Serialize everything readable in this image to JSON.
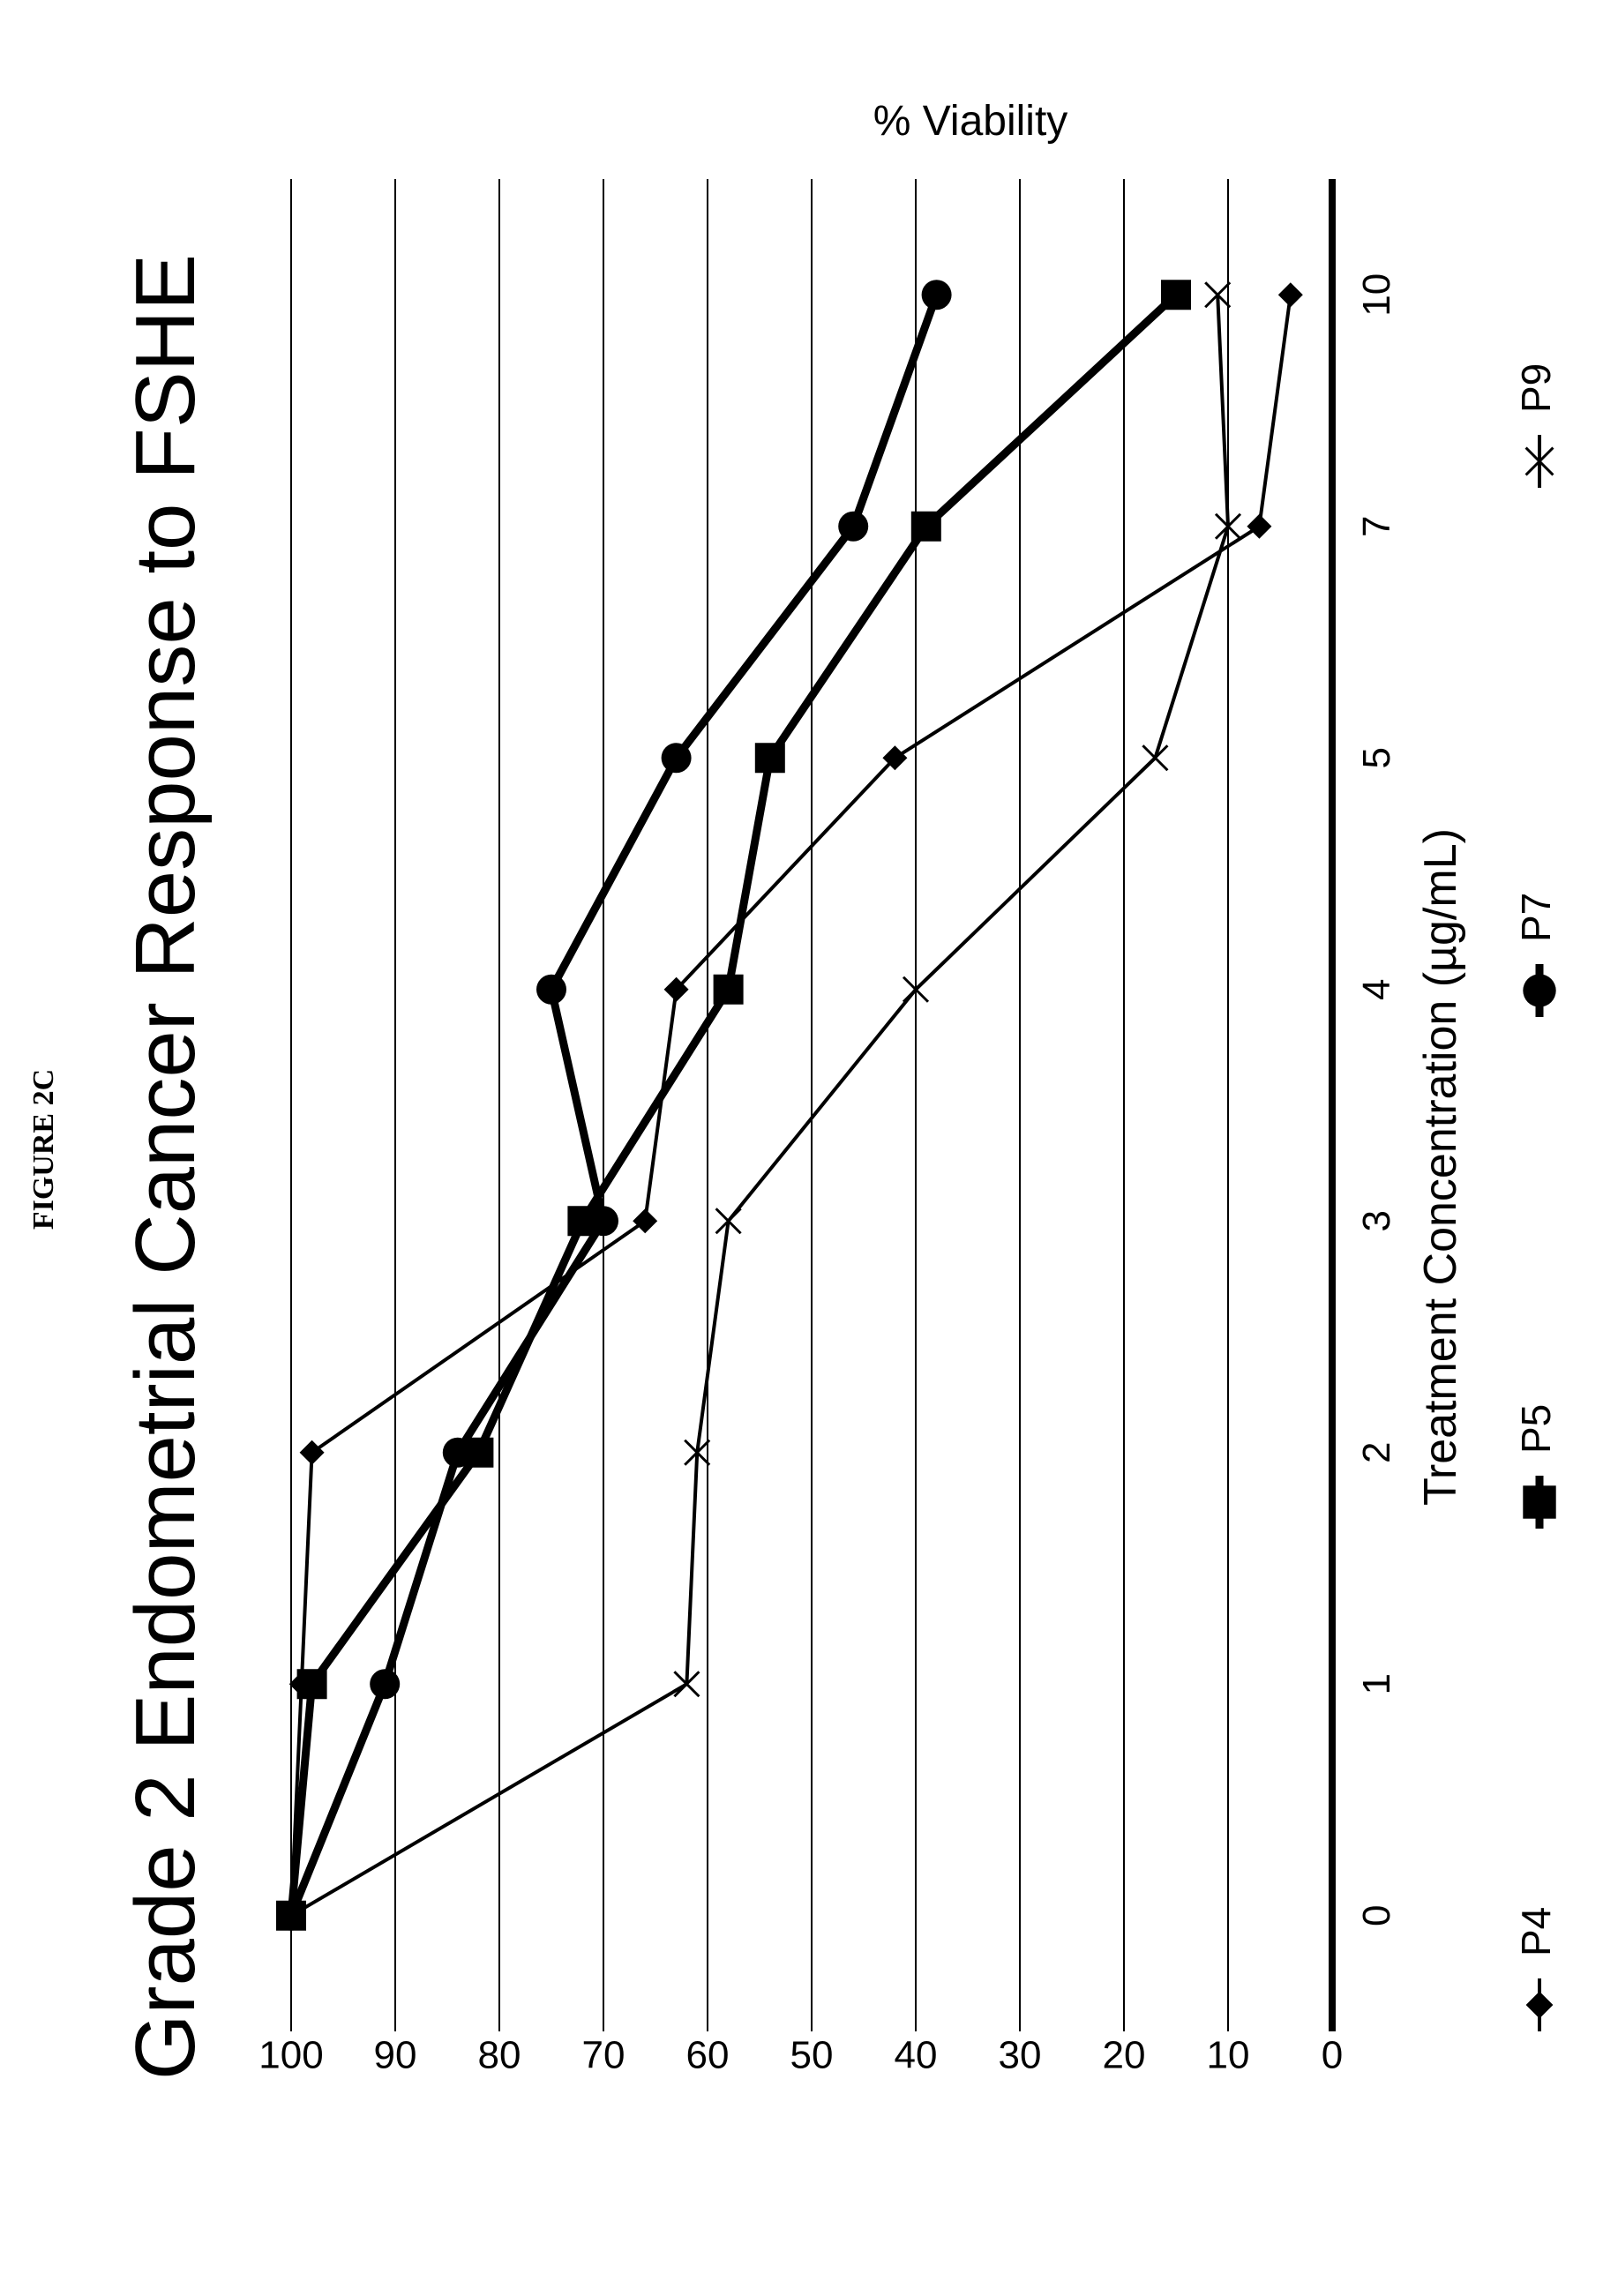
{
  "figure_label": "FIGURE 2C",
  "chart_data": {
    "type": "line",
    "title": "Grade 2 Endometrial Cancer Response to FSHE",
    "xlabel": "Treatment Concentration (µg/mL)",
    "ylabel": "% Viability",
    "categories": [
      "0",
      "1",
      "2",
      "3",
      "4",
      "5",
      "7",
      "10"
    ],
    "yticks": [
      "0",
      "10",
      "20",
      "30",
      "40",
      "50",
      "60",
      "70",
      "80",
      "90",
      "100"
    ],
    "ylim": [
      0,
      100
    ],
    "grid": true,
    "legend_position": "bottom",
    "orientation": "rotated 90° counter-clockwise",
    "series": [
      {
        "name": "P4",
        "marker": "diamond",
        "line": "thin",
        "values": [
          100,
          99,
          98,
          66,
          63,
          42,
          7,
          4
        ]
      },
      {
        "name": "P5",
        "marker": "square",
        "line": "thick",
        "values": [
          100,
          98,
          82,
          72,
          58,
          54,
          39,
          15
        ]
      },
      {
        "name": "P7",
        "marker": "circle",
        "line": "thick",
        "values": [
          100,
          91,
          84,
          70,
          75,
          63,
          46,
          38
        ]
      },
      {
        "name": "P9",
        "marker": "x",
        "line": "thin",
        "values": [
          100,
          62,
          61,
          58,
          40,
          17,
          10,
          11
        ]
      }
    ]
  }
}
